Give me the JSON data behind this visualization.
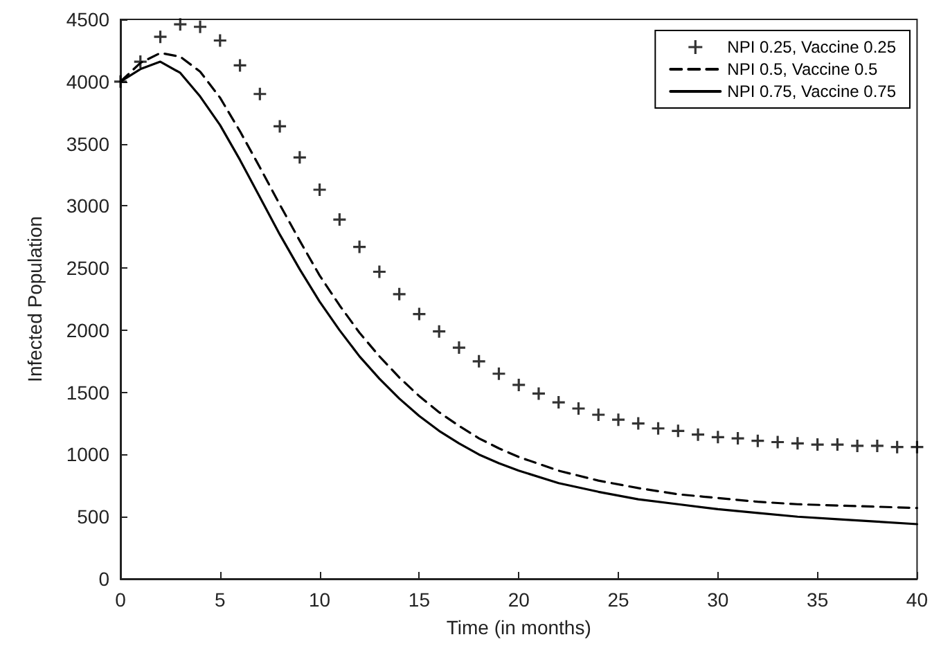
{
  "chart_data": {
    "type": "line",
    "xlabel": "Time (in months)",
    "ylabel": "Infected Population",
    "xlim": [
      0,
      40
    ],
    "xticks": [
      0,
      5,
      10,
      15,
      20,
      25,
      30,
      35,
      40
    ],
    "ylim": [
      0,
      4500
    ],
    "yticks": [
      0,
      500,
      1000,
      1500,
      2000,
      2500,
      3000,
      3500,
      4000,
      4500
    ],
    "grid": false,
    "legend": "top right",
    "series": [
      {
        "name": "NPI 0.25, Vaccine 0.25",
        "type": "scatter",
        "marker": "cross",
        "color": "#000000",
        "x": [
          0,
          1,
          2,
          3,
          4,
          5,
          6,
          7,
          8,
          9,
          10,
          11,
          12,
          13,
          14,
          15,
          16,
          17,
          18,
          19,
          20,
          21,
          22,
          23,
          24,
          25,
          26,
          27,
          28,
          29,
          30,
          31,
          32,
          33,
          34,
          35,
          36,
          37,
          38,
          39,
          40
        ],
        "values": [
          4000,
          4160,
          4360,
          4460,
          4440,
          4330,
          4130,
          3900,
          3640,
          3390,
          3130,
          2890,
          2670,
          2470,
          2290,
          2130,
          1990,
          1860,
          1750,
          1650,
          1560,
          1490,
          1420,
          1370,
          1320,
          1280,
          1250,
          1210,
          1190,
          1160,
          1140,
          1130,
          1110,
          1100,
          1090,
          1080,
          1080,
          1070,
          1070,
          1060,
          1060
        ]
      },
      {
        "name": "NPI 0.5, Vaccine 0.5",
        "type": "line",
        "marker": "none",
        "line_style": "dashed",
        "color": "#000000",
        "x": [
          0,
          1,
          2,
          3,
          4,
          5,
          6,
          7,
          8,
          9,
          10,
          11,
          12,
          13,
          14,
          15,
          16,
          17,
          18,
          19,
          20,
          22,
          24,
          26,
          28,
          30,
          32,
          34,
          36,
          38,
          40
        ],
        "values": [
          4000,
          4150,
          4230,
          4200,
          4080,
          3870,
          3600,
          3310,
          3010,
          2720,
          2440,
          2200,
          1980,
          1790,
          1620,
          1470,
          1340,
          1230,
          1130,
          1050,
          980,
          870,
          790,
          730,
          680,
          650,
          620,
          600,
          590,
          580,
          570
        ]
      },
      {
        "name": "NPI 0.75, Vaccine 0.75",
        "type": "line",
        "marker": "none",
        "line_style": "solid",
        "color": "#000000",
        "x": [
          0,
          1,
          2,
          3,
          4,
          5,
          6,
          7,
          8,
          9,
          10,
          11,
          12,
          13,
          14,
          15,
          16,
          17,
          18,
          19,
          20,
          22,
          24,
          26,
          28,
          30,
          32,
          34,
          36,
          38,
          40
        ],
        "values": [
          4000,
          4100,
          4160,
          4070,
          3880,
          3650,
          3370,
          3070,
          2770,
          2490,
          2230,
          2000,
          1790,
          1610,
          1450,
          1310,
          1190,
          1090,
          1000,
          930,
          870,
          770,
          700,
          640,
          600,
          560,
          530,
          500,
          480,
          460,
          440
        ]
      }
    ]
  }
}
